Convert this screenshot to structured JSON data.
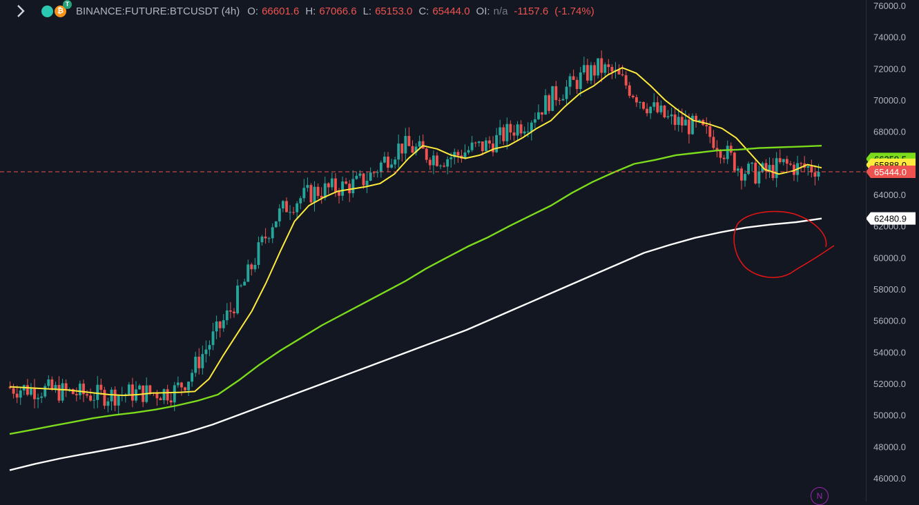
{
  "header": {
    "symbol": "BINANCE:FUTURE:BTCUSDT (4h)",
    "open_label": "O:",
    "open": "66601.6",
    "high_label": "H:",
    "high": "67066.6",
    "low_label": "L:",
    "low": "65153.0",
    "close_label": "C:",
    "close": "65444.0",
    "oi_label": "OI:",
    "oi": "n/a",
    "change": "-1157.6",
    "change_pct": "(-1.74%)"
  },
  "colors": {
    "background": "#131722",
    "up": "#26a69a",
    "down": "#ef5350",
    "ma_short": "#ffeb3b",
    "ma_mid": "#7cdc1c",
    "ma_long": "#ffffff",
    "annotation": "#e31414"
  },
  "icons": [
    "chevron-right-icon",
    "coin-teal-icon",
    "bitcoin-icon",
    "tether-icon"
  ],
  "badge": "N",
  "chart_data": {
    "type": "candlestick",
    "ylim": [
      45500,
      76200
    ],
    "y_ticks": [
      46000,
      48000,
      50000,
      52000,
      54000,
      56000,
      58000,
      60000,
      62000,
      64000,
      66000,
      68000,
      70000,
      72000,
      74000,
      76000
    ],
    "y_tick_labels": [
      "46000.0",
      "48000.0",
      "50000.0",
      "52000.0",
      "54000.0",
      "56000.0",
      "58000.0",
      "60000.0",
      "62000.0",
      "64000.0",
      "66000.0",
      "68000.0",
      "70000.0",
      "72000.0",
      "74000.0",
      "76000.0"
    ],
    "price_labels": [
      {
        "value": 66259.5,
        "text": "66259.5",
        "color": "#7cdc1c",
        "text_color": "#000000"
      },
      {
        "value": 65888.0,
        "text": "65888.0",
        "color": "#ffeb3b",
        "text_color": "#000000"
      },
      {
        "value": 65444.0,
        "text": "65444.0",
        "color": "#ef5350",
        "text_color": "#ffffff"
      },
      {
        "value": 62480.9,
        "text": "62480.9",
        "color": "#ffffff",
        "text_color": "#000000"
      }
    ],
    "last_price_line": 65444.0,
    "series": [
      {
        "type": "line",
        "color": "#ffeb3b",
        "values": [
          51800,
          51750,
          51700,
          51650,
          51600,
          51500,
          51400,
          51300,
          51250,
          51300,
          51400,
          51420,
          51450,
          51500,
          52300,
          53800,
          55200,
          56600,
          58400,
          60400,
          62300,
          63300,
          63800,
          64200,
          64350,
          64500,
          64700,
          65300,
          66300,
          67100,
          66900,
          66500,
          66300,
          66500,
          66900,
          67100,
          67600,
          68200,
          68700,
          69600,
          70400,
          70900,
          71600,
          72050,
          71700,
          70900,
          70000,
          69300,
          68700,
          68500,
          68200,
          67600,
          66600,
          65600,
          65300,
          65500,
          65900,
          65700
        ]
      },
      {
        "type": "line",
        "color": "#7cdc1c",
        "values": [
          48800,
          49050,
          49300,
          49550,
          49800,
          50000,
          50150,
          50350,
          50600,
          50900,
          51300,
          52200,
          53200,
          54100,
          54900,
          55700,
          56400,
          57100,
          57800,
          58500,
          59300,
          60000,
          60700,
          61300,
          62000,
          62650,
          63300,
          64100,
          64800,
          65400,
          65950,
          66200,
          66500,
          66650,
          66800,
          66850,
          66950,
          67000,
          67050,
          67100
        ]
      },
      {
        "type": "line",
        "color": "#ffffff",
        "values": [
          46500,
          46900,
          47250,
          47550,
          47850,
          48150,
          48500,
          48900,
          49400,
          50000,
          50600,
          51200,
          51800,
          52400,
          53000,
          53600,
          54200,
          54800,
          55400,
          56100,
          56800,
          57500,
          58200,
          58900,
          59600,
          60300,
          60800,
          61250,
          61600,
          61900,
          62100,
          62250,
          62480
        ]
      }
    ]
  }
}
